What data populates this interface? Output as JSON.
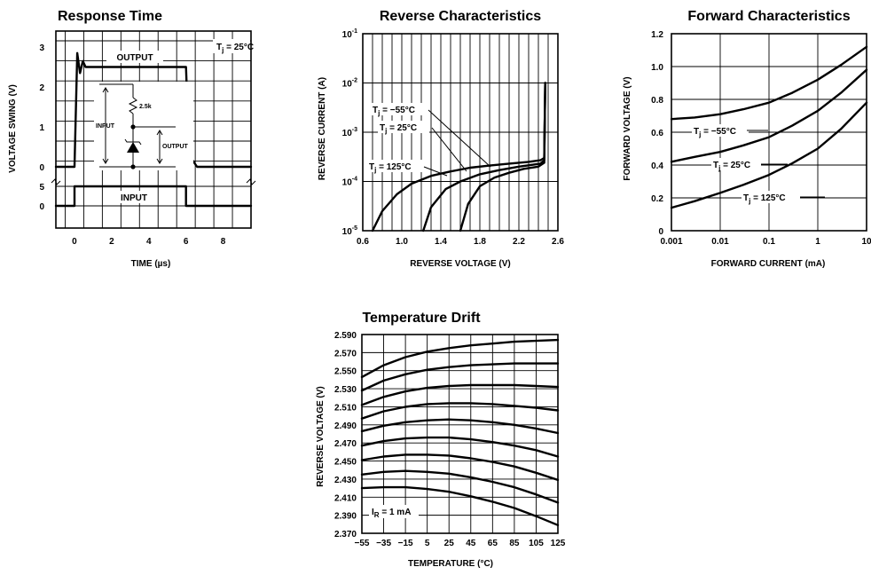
{
  "chart_data": [
    {
      "type": "line",
      "title": "Response Time",
      "xlabel": "TIME (µs)",
      "ylabel": "VOLTAGE SWING (V)",
      "x_ticks": [
        "0",
        "2",
        "4",
        "6",
        "8"
      ],
      "xlim": [
        -1,
        9.5
      ],
      "output_y_ticks": [
        "3",
        "2",
        "1",
        "0"
      ],
      "input_y_ticks": [
        "5",
        "0"
      ],
      "series": [
        {
          "name": "OUTPUT",
          "x": [
            -1,
            0,
            0.15,
            0.3,
            0.45,
            0.6,
            0.8,
            6.0,
            6.1,
            6.3,
            6.6,
            9.5
          ],
          "y": [
            0,
            0,
            2.85,
            2.35,
            2.65,
            2.5,
            2.5,
            2.5,
            1.2,
            0.2,
            0,
            0
          ]
        },
        {
          "name": "INPUT",
          "x": [
            -1,
            0,
            0,
            6,
            6,
            9.5
          ],
          "y": [
            0,
            0,
            5,
            5,
            0,
            0
          ]
        }
      ],
      "annotations": [
        {
          "text": "T",
          "sub": "j",
          "rest": " = 25°C"
        },
        {
          "text": "OUTPUT"
        },
        {
          "text": "INPUT"
        }
      ],
      "inset": {
        "input_label": "INPUT",
        "output_label": "OUTPUT",
        "resistor_label": "2.5k"
      }
    },
    {
      "type": "line",
      "title": "Reverse Characteristics",
      "xlabel": "REVERSE VOLTAGE (V)",
      "ylabel": "REVERSE CURRENT (A)",
      "x_ticks": [
        "0.6",
        "1.0",
        "1.4",
        "1.8",
        "2.2",
        "2.6"
      ],
      "xlim": [
        0.6,
        2.6
      ],
      "y_scale": "log",
      "ylim": [
        1e-05,
        0.1
      ],
      "y_ticks": [
        {
          "base": "10",
          "exp": "-1"
        },
        {
          "base": "10",
          "exp": "-2"
        },
        {
          "base": "10",
          "exp": "-3"
        },
        {
          "base": "10",
          "exp": "-4"
        },
        {
          "base": "10",
          "exp": "-5"
        }
      ],
      "series": [
        {
          "name": "Tj = 125°C",
          "x": [
            0.7,
            0.8,
            0.95,
            1.1,
            1.3,
            1.5,
            1.7,
            1.9,
            2.1,
            2.3,
            2.42,
            2.46,
            2.47
          ],
          "y": [
            1e-05,
            2.5e-05,
            5.5e-05,
            9e-05,
            0.00013,
            0.00016,
            0.00019,
            0.00021,
            0.00023,
            0.00025,
            0.00027,
            0.0003,
            0.01
          ]
        },
        {
          "name": "Tj = 25°C",
          "x": [
            1.22,
            1.3,
            1.45,
            1.6,
            1.8,
            2.0,
            2.2,
            2.42,
            2.46,
            2.47
          ],
          "y": [
            1e-05,
            3e-05,
            7e-05,
            0.0001,
            0.00014,
            0.00017,
            0.0002,
            0.00023,
            0.00027,
            0.01
          ]
        },
        {
          "name": "Tj = −55°C",
          "x": [
            1.6,
            1.68,
            1.8,
            1.95,
            2.1,
            2.25,
            2.4,
            2.46,
            2.47
          ],
          "y": [
            1e-05,
            3.5e-05,
            8e-05,
            0.00012,
            0.00015,
            0.00018,
            0.0002,
            0.00024,
            0.01
          ]
        }
      ],
      "annotations": [
        {
          "text": "T",
          "sub": "j",
          "rest": " = −55°C"
        },
        {
          "text": "T",
          "sub": "j",
          "rest": " = 25°C"
        },
        {
          "text": "T",
          "sub": "j",
          "rest": " = 125°C"
        }
      ]
    },
    {
      "type": "line",
      "title": "Forward Characteristics",
      "xlabel": "FORWARD CURRENT (mA)",
      "ylabel": "FORWARD VOLTAGE (V)",
      "x_scale": "log",
      "xlim": [
        0.001,
        10
      ],
      "x_ticks": [
        "0.001",
        "0.01",
        "0.1",
        "1",
        "10"
      ],
      "ylim": [
        0,
        1.2
      ],
      "y_ticks": [
        "1.2",
        "1.0",
        "0.8",
        "0.6",
        "0.4",
        "0.2",
        "0"
      ],
      "series": [
        {
          "name": "Tj = −55°C",
          "x": [
            0.001,
            0.003,
            0.01,
            0.03,
            0.1,
            0.3,
            1,
            3,
            10
          ],
          "y": [
            0.68,
            0.69,
            0.71,
            0.74,
            0.78,
            0.84,
            0.92,
            1.01,
            1.12
          ]
        },
        {
          "name": "Tj = 25°C",
          "x": [
            0.001,
            0.003,
            0.01,
            0.03,
            0.1,
            0.3,
            1,
            3,
            10
          ],
          "y": [
            0.42,
            0.45,
            0.48,
            0.52,
            0.57,
            0.64,
            0.73,
            0.84,
            0.98
          ]
        },
        {
          "name": "Tj = 125°C",
          "x": [
            0.001,
            0.003,
            0.01,
            0.03,
            0.1,
            0.3,
            1,
            3,
            10
          ],
          "y": [
            0.14,
            0.18,
            0.23,
            0.28,
            0.34,
            0.41,
            0.5,
            0.62,
            0.78
          ]
        }
      ],
      "annotations": [
        {
          "text": "T",
          "sub": "j",
          "rest": " = −55°C"
        },
        {
          "text": "T",
          "sub": "j",
          "rest": " = 25°C"
        },
        {
          "text": "T",
          "sub": "j",
          "rest": " = 125°C"
        }
      ]
    },
    {
      "type": "line",
      "title": "Temperature Drift",
      "xlabel": "TEMPERATURE (°C)",
      "ylabel": "REVERSE VOLTAGE (V)",
      "xlim": [
        -55,
        125
      ],
      "x_ticks": [
        "−55",
        "−35",
        "−15",
        "5",
        "25",
        "45",
        "65",
        "85",
        "105",
        "125"
      ],
      "ylim": [
        2.37,
        2.59
      ],
      "y_ticks": [
        "2.590",
        "2.570",
        "2.550",
        "2.530",
        "2.510",
        "2.490",
        "2.470",
        "2.450",
        "2.430",
        "2.410",
        "2.390",
        "2.370"
      ],
      "x": [
        -55,
        -35,
        -15,
        5,
        25,
        45,
        65,
        85,
        105,
        125
      ],
      "series": [
        {
          "y": [
            2.543,
            2.556,
            2.565,
            2.571,
            2.575,
            2.578,
            2.58,
            2.582,
            2.583,
            2.584
          ]
        },
        {
          "y": [
            2.528,
            2.539,
            2.546,
            2.551,
            2.554,
            2.556,
            2.557,
            2.558,
            2.558,
            2.558
          ]
        },
        {
          "y": [
            2.512,
            2.521,
            2.527,
            2.531,
            2.533,
            2.534,
            2.534,
            2.534,
            2.533,
            2.532
          ]
        },
        {
          "y": [
            2.497,
            2.505,
            2.51,
            2.513,
            2.514,
            2.514,
            2.513,
            2.511,
            2.509,
            2.506
          ]
        },
        {
          "y": [
            2.483,
            2.489,
            2.493,
            2.495,
            2.496,
            2.495,
            2.493,
            2.49,
            2.486,
            2.481
          ]
        },
        {
          "y": [
            2.467,
            2.472,
            2.475,
            2.476,
            2.476,
            2.474,
            2.471,
            2.467,
            2.462,
            2.455
          ]
        },
        {
          "y": [
            2.451,
            2.455,
            2.457,
            2.457,
            2.456,
            2.453,
            2.449,
            2.444,
            2.437,
            2.429
          ]
        },
        {
          "y": [
            2.435,
            2.438,
            2.439,
            2.438,
            2.436,
            2.432,
            2.427,
            2.421,
            2.413,
            2.404
          ]
        },
        {
          "y": [
            2.42,
            2.421,
            2.421,
            2.419,
            2.416,
            2.411,
            2.405,
            2.398,
            2.389,
            2.379
          ]
        }
      ],
      "annotations": [
        {
          "text": "I",
          "sub": "R",
          "rest": " = 1 mA"
        }
      ]
    }
  ]
}
